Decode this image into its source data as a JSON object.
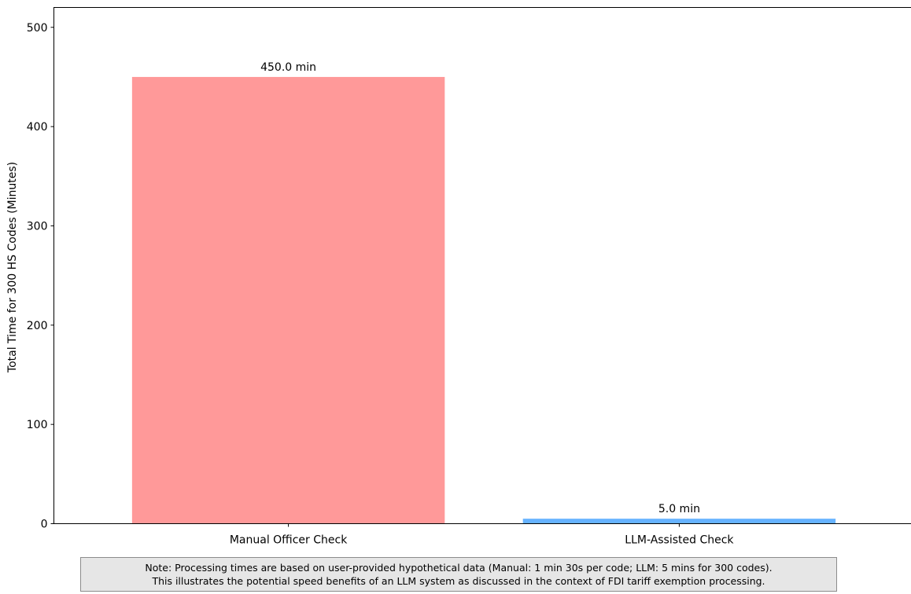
{
  "chart_data": {
    "type": "bar",
    "categories": [
      "Manual Officer Check",
      "LLM-Assisted Check"
    ],
    "values": [
      450.0,
      5.0
    ],
    "value_labels": [
      "450.0 min",
      "5.0 min"
    ],
    "colors": [
      "#ff9999",
      "#66b3ff"
    ],
    "title": "",
    "xlabel": "",
    "ylabel": "Total Time for 300 HS Codes (Minutes)",
    "ylim": [
      0,
      520
    ],
    "yticks": [
      0,
      100,
      200,
      300,
      400,
      500
    ],
    "grid": false
  },
  "note": {
    "line1": "Note: Processing times are based on user-provided hypothetical data (Manual: 1 min 30s per code; LLM: 5 mins for 300 codes).",
    "line2": "This illustrates the potential speed benefits of an LLM system as discussed in the context of FDI tariff exemption processing."
  }
}
